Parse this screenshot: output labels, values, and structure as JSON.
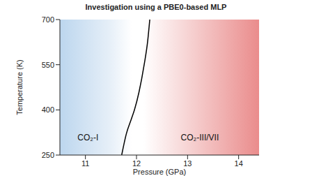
{
  "chart_data": {
    "type": "line",
    "title": "Investigation using a PBE0-based MLP",
    "x_label": "Pressure (GPa)",
    "y_label": "Temperature (K)",
    "x": [
      11.71,
      11.8,
      11.9,
      11.96,
      12.05,
      12.15,
      12.22,
      12.26
    ],
    "values": [
      250,
      320,
      370,
      400,
      460,
      550,
      630,
      700
    ],
    "color": "#000000",
    "xlim": [
      10.5,
      14.4
    ],
    "xticks": [
      11,
      12,
      13,
      14
    ],
    "ylim": [
      250,
      700
    ],
    "yticks": [
      250,
      400,
      550,
      700
    ],
    "annotations": [
      {
        "text": "CO₂-I",
        "x": 11.05,
        "y": 308
      },
      {
        "text": "CO₂-III/VII",
        "x": 13.24,
        "y": 308
      }
    ]
  }
}
